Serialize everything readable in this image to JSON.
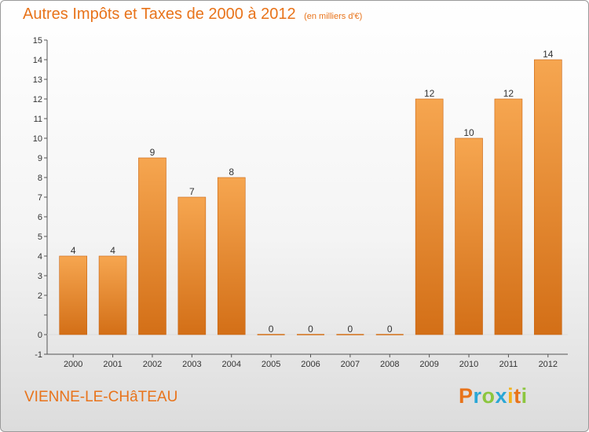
{
  "title": "Autres Impôts et Taxes de 2000 à 2012",
  "unit": "(en milliers d'€)",
  "commune": "VIENNE-LE-CHâTEAU",
  "logo_text": "Proxiti",
  "colors": {
    "bar_top": "#f6a650",
    "bar_bottom": "#d36f17",
    "accent": "#e8731a"
  },
  "chart_data": {
    "type": "bar",
    "title": "Autres Impôts et Taxes de 2000 à 2012",
    "ylabel": "",
    "xlabel": "",
    "categories": [
      "2000",
      "2001",
      "2002",
      "2003",
      "2004",
      "2005",
      "2006",
      "2007",
      "2008",
      "2009",
      "2010",
      "2011",
      "2012"
    ],
    "values": [
      4,
      4,
      9,
      7,
      8,
      0,
      0,
      0,
      0,
      12,
      10,
      12,
      14
    ],
    "data_labels": [
      "4",
      "4",
      "9",
      "7",
      "8",
      "0",
      "0",
      "0",
      "0",
      "12",
      "10",
      "12",
      "14"
    ],
    "ylim": [
      -1,
      15
    ],
    "yticks": [
      -1,
      0,
      1,
      2,
      3,
      4,
      5,
      6,
      7,
      8,
      9,
      10,
      11,
      12,
      13,
      14,
      15
    ],
    "ytick_labels": [
      "-1",
      "0",
      "",
      "2",
      "3",
      "4",
      "5",
      "6",
      "7",
      "8",
      "9",
      "10",
      "11",
      "12",
      "13",
      "14",
      "15"
    ],
    "grid": false,
    "legend": "none"
  }
}
